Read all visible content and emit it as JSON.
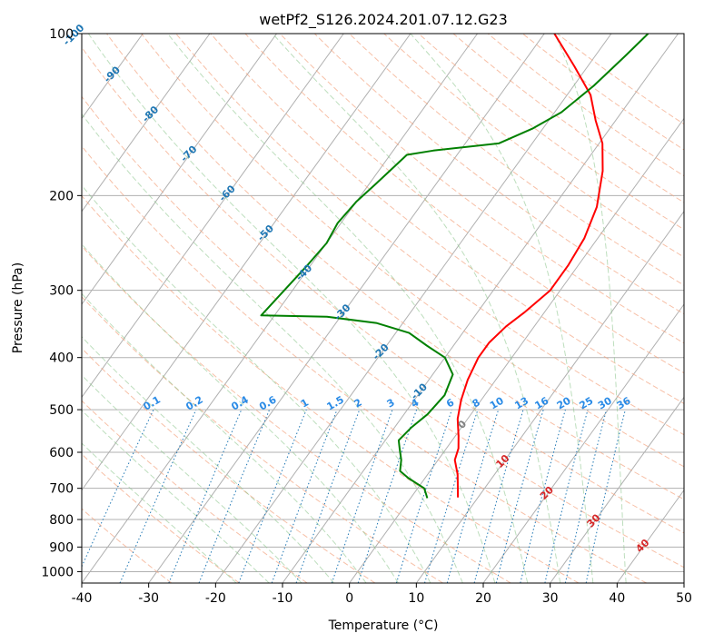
{
  "chart_data": {
    "type": "line",
    "subtype": "skew-T log-P diagram",
    "title": "wetPf2_S126.2024.201.07.12.G23",
    "xlabel": "Temperature (°C)",
    "ylabel": "Pressure (hPa)",
    "xlim": [
      -40,
      50
    ],
    "ylim": [
      1050,
      100
    ],
    "y_scale": "log",
    "x_ticks": [
      -40,
      -30,
      -20,
      -10,
      0,
      10,
      20,
      30,
      40,
      50
    ],
    "y_ticks": [
      100,
      200,
      300,
      400,
      500,
      600,
      700,
      800,
      900,
      1000
    ],
    "grid": true,
    "series": [
      {
        "color": "#ff0000",
        "points": [
          {
            "p": 728,
            "t": 7.0
          },
          {
            "p": 700,
            "t": 6.0
          },
          {
            "p": 660,
            "t": 4.5
          },
          {
            "p": 620,
            "t": 2.5
          },
          {
            "p": 590,
            "t": 1.8
          },
          {
            "p": 560,
            "t": 0.5
          },
          {
            "p": 520,
            "t": -1.5
          },
          {
            "p": 480,
            "t": -3.0
          },
          {
            "p": 440,
            "t": -4.2
          },
          {
            "p": 400,
            "t": -5.0
          },
          {
            "p": 375,
            "t": -5.0
          },
          {
            "p": 350,
            "t": -4.2
          },
          {
            "p": 330,
            "t": -3.0
          },
          {
            "p": 300,
            "t": -1.5
          },
          {
            "p": 270,
            "t": -1.5
          },
          {
            "p": 240,
            "t": -2.0
          },
          {
            "p": 210,
            "t": -3.5
          },
          {
            "p": 180,
            "t": -6.5
          },
          {
            "p": 160,
            "t": -9.5
          },
          {
            "p": 145,
            "t": -13.0
          },
          {
            "p": 130,
            "t": -16.5
          },
          {
            "p": 115,
            "t": -22.0
          },
          {
            "p": 100,
            "t": -28.5
          }
        ]
      },
      {
        "color": "#008000",
        "points": [
          {
            "p": 730,
            "t": 2.5
          },
          {
            "p": 700,
            "t": 1.0
          },
          {
            "p": 670,
            "t": -2.5
          },
          {
            "p": 650,
            "t": -4.5
          },
          {
            "p": 620,
            "t": -5.5
          },
          {
            "p": 590,
            "t": -7.0
          },
          {
            "p": 570,
            "t": -8.0
          },
          {
            "p": 540,
            "t": -7.5
          },
          {
            "p": 510,
            "t": -6.5
          },
          {
            "p": 470,
            "t": -6.0
          },
          {
            "p": 430,
            "t": -7.0
          },
          {
            "p": 400,
            "t": -10.0
          },
          {
            "p": 380,
            "t": -14.0
          },
          {
            "p": 360,
            "t": -18.0
          },
          {
            "p": 345,
            "t": -24.0
          },
          {
            "p": 336,
            "t": -32.0
          },
          {
            "p": 334,
            "t": -42.0
          },
          {
            "p": 270,
            "t": -40.5
          },
          {
            "p": 245,
            "t": -40.0
          },
          {
            "p": 225,
            "t": -40.5
          },
          {
            "p": 205,
            "t": -40.0
          },
          {
            "p": 190,
            "t": -39.0
          },
          {
            "p": 175,
            "t": -38.0
          },
          {
            "p": 168,
            "t": -37.5
          },
          {
            "p": 165,
            "t": -34.0
          },
          {
            "p": 160,
            "t": -25.0
          },
          {
            "p": 150,
            "t": -21.5
          },
          {
            "p": 140,
            "t": -19.0
          },
          {
            "p": 125,
            "t": -17.0
          },
          {
            "p": 110,
            "t": -15.5
          },
          {
            "p": 100,
            "t": -14.5
          }
        ]
      }
    ],
    "isotherm_labels": [
      "-100",
      "-90",
      "-80",
      "-70",
      "-60",
      "-50",
      "-40",
      "-30",
      "-20",
      "-10",
      "0",
      "10",
      "20",
      "30",
      "40"
    ],
    "mixing_ratio_labels": [
      "0.1",
      "0.2",
      "0.4",
      "0.6",
      "1",
      "1.5",
      "2",
      "3",
      "4",
      "6",
      "8",
      "10",
      "13",
      "16",
      "20",
      "25",
      "30",
      "36"
    ]
  }
}
